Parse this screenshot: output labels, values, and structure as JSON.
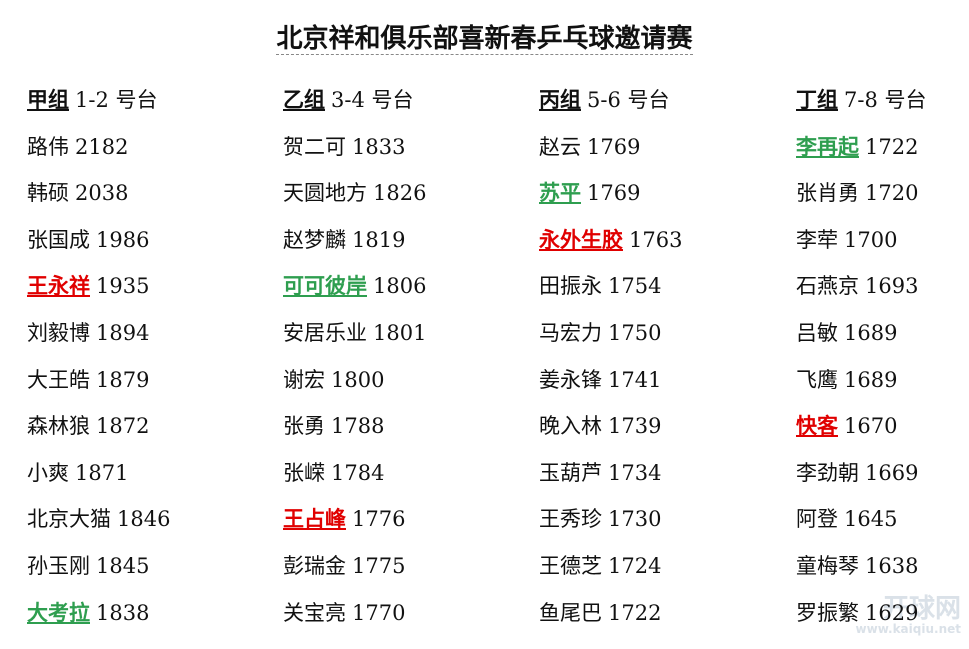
{
  "header": {
    "title": "北京祥和俱乐部喜新春乒乓球邀请赛"
  },
  "groups": [
    {
      "group": "甲组",
      "tables": "1-2 号台",
      "players": [
        {
          "name": "路伟",
          "rating": 2182
        },
        {
          "name": "韩硕",
          "rating": 2038
        },
        {
          "name": "张国成",
          "rating": 1986
        },
        {
          "name": "王永祥",
          "rating": 1935,
          "color": "#e00000"
        },
        {
          "name": "刘毅博",
          "rating": 1894
        },
        {
          "name": "大王皓",
          "rating": 1879
        },
        {
          "name": "森林狼",
          "rating": 1872
        },
        {
          "name": "小爽",
          "rating": 1871
        },
        {
          "name": "北京大猫",
          "rating": 1846
        },
        {
          "name": "孙玉刚",
          "rating": 1845
        },
        {
          "name": "大考拉",
          "rating": 1838,
          "color": "#2e9e4f"
        }
      ]
    },
    {
      "group": "乙组",
      "tables": "3-4 号台",
      "players": [
        {
          "name": "贺二可",
          "rating": 1833
        },
        {
          "name": "天圆地方",
          "rating": 1826
        },
        {
          "name": "赵梦麟",
          "rating": 1819
        },
        {
          "name": "可可彼岸",
          "rating": 1806,
          "color": "#2e9e4f"
        },
        {
          "name": "安居乐业",
          "rating": 1801
        },
        {
          "name": "谢宏",
          "rating": 1800
        },
        {
          "name": "张勇",
          "rating": 1788
        },
        {
          "name": "张嵘",
          "rating": 1784
        },
        {
          "name": "王占峰",
          "rating": 1776,
          "color": "#e00000"
        },
        {
          "name": "彭瑞金",
          "rating": 1775
        },
        {
          "name": "关宝亮",
          "rating": 1770
        }
      ]
    },
    {
      "group": "丙组",
      "tables": "5-6 号台",
      "players": [
        {
          "name": "赵云",
          "rating": 1769
        },
        {
          "name": "苏平",
          "rating": 1769,
          "color": "#2e9e4f"
        },
        {
          "name": "永外生胶",
          "rating": 1763,
          "color": "#e00000"
        },
        {
          "name": "田振永",
          "rating": 1754
        },
        {
          "name": "马宏力",
          "rating": 1750
        },
        {
          "name": "姜永锋",
          "rating": 1741
        },
        {
          "name": "晚入林",
          "rating": 1739
        },
        {
          "name": "玉葫芦",
          "rating": 1734
        },
        {
          "name": "王秀珍",
          "rating": 1730
        },
        {
          "name": "王德芝",
          "rating": 1724
        },
        {
          "name": "鱼尾巴",
          "rating": 1722
        }
      ]
    },
    {
      "group": "丁组",
      "tables": "7-8 号台",
      "players": [
        {
          "name": "李再起",
          "rating": 1722,
          "color": "#2e9e4f"
        },
        {
          "name": "张肖勇",
          "rating": 1720
        },
        {
          "name": "李荦",
          "rating": 1700
        },
        {
          "name": "石燕京",
          "rating": 1693
        },
        {
          "name": "吕敏",
          "rating": 1689
        },
        {
          "name": "飞鹰",
          "rating": 1689
        },
        {
          "name": "快客",
          "rating": 1670,
          "color": "#e00000"
        },
        {
          "name": "李劲朝",
          "rating": 1669
        },
        {
          "name": "阿登",
          "rating": 1645
        },
        {
          "name": "童梅琴",
          "rating": 1638
        },
        {
          "name": "罗振繁",
          "rating": 1629
        }
      ]
    }
  ],
  "watermark": {
    "name": "开球网",
    "url": "www.kaiqiu.net"
  }
}
